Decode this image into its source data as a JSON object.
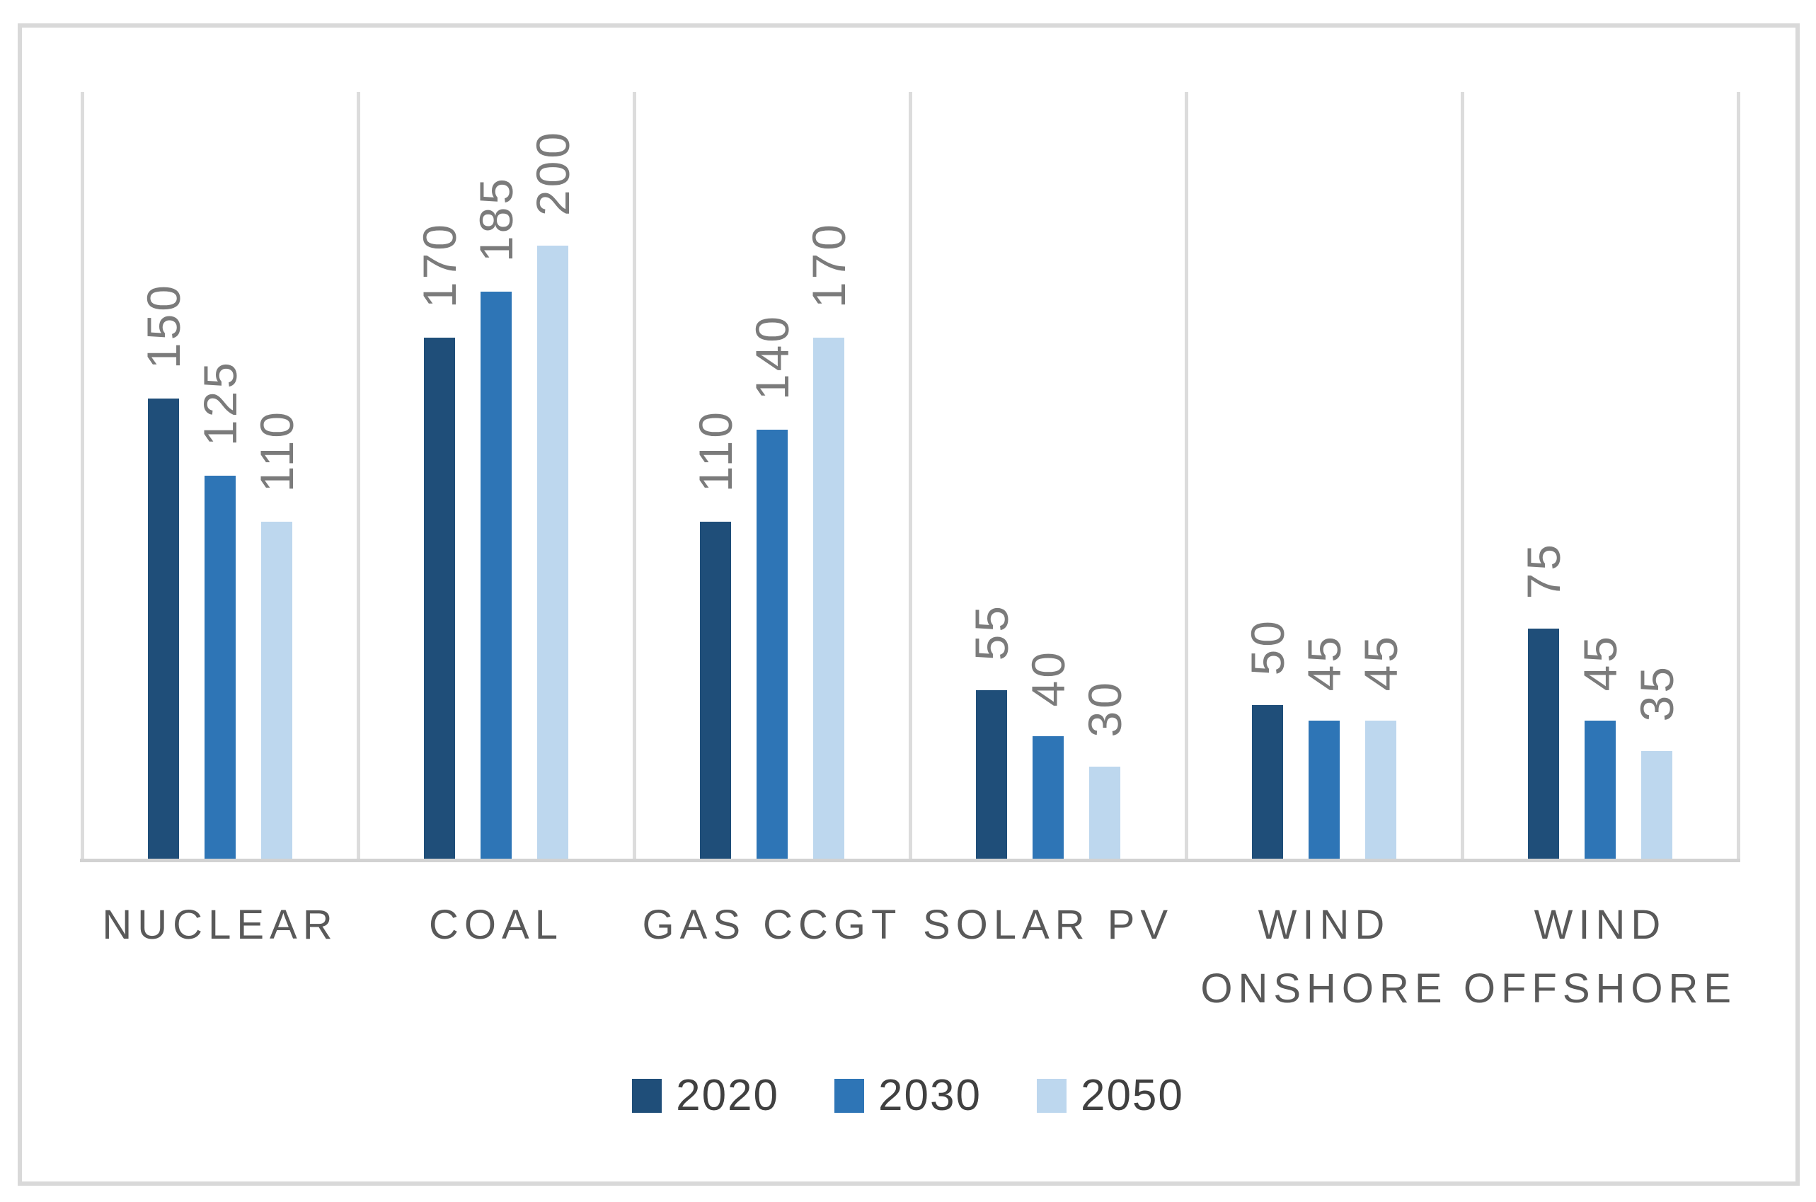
{
  "chart_data": {
    "type": "bar",
    "title": "",
    "xlabel": "",
    "ylabel": "",
    "ylim": [
      0,
      250
    ],
    "y_axis_visible": false,
    "grid": "vertical-category-separators",
    "legend_position": "bottom",
    "data_labels": "outside-end-rotated-90",
    "categories": [
      "NUCLEAR",
      "COAL",
      "GAS CCGT",
      "SOLAR PV",
      "WIND\nONSHORE",
      "WIND\nOFFSHORE"
    ],
    "series": [
      {
        "name": "2020",
        "color": "#1F4E79",
        "values": [
          150,
          170,
          110,
          55,
          50,
          75
        ]
      },
      {
        "name": "2030",
        "color": "#2E75B6",
        "values": [
          125,
          185,
          140,
          40,
          45,
          45
        ]
      },
      {
        "name": "2050",
        "color": "#BDD7EE",
        "values": [
          110,
          200,
          170,
          30,
          45,
          35
        ]
      }
    ]
  },
  "colors": {
    "frame_border": "#D9D9D9",
    "gridline": "#DCDCDC",
    "axis_line": "#D2D2D2",
    "data_label_text": "#7B7B7B",
    "category_label_text": "#595959",
    "legend_text": "#404040",
    "background": "#FFFFFF"
  }
}
